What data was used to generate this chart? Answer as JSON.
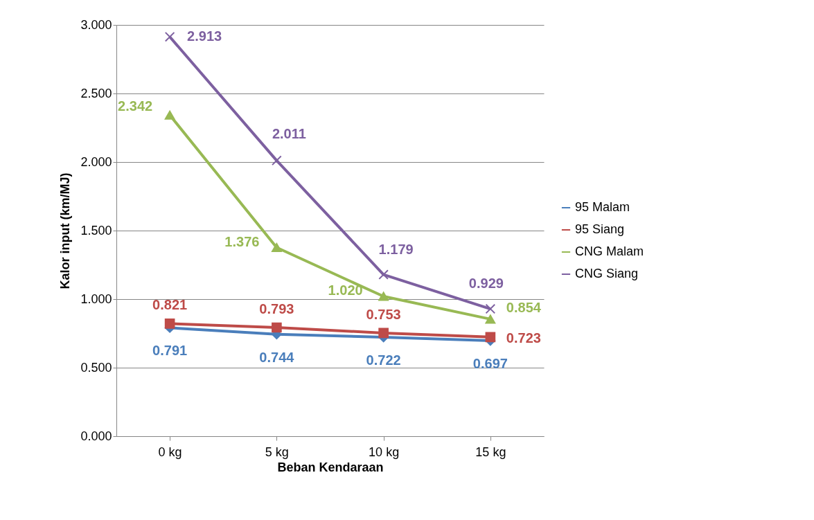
{
  "chart_data": {
    "type": "line",
    "xlabel": "Beban Kendaraan",
    "ylabel": "Kalor input (km/MJ)",
    "categories": [
      "0 kg",
      "5 kg",
      "10 kg",
      "15 kg"
    ],
    "series": [
      {
        "name": "95 Malam",
        "color": "#4a7ebb",
        "marker": "diamond",
        "values": [
          0.791,
          0.744,
          0.722,
          0.697
        ],
        "value_labels": [
          "0.791",
          "0.744",
          "0.722",
          "0.697"
        ]
      },
      {
        "name": "95 Siang",
        "color": "#be4b48",
        "marker": "square",
        "values": [
          0.821,
          0.793,
          0.753,
          0.723
        ],
        "value_labels": [
          "0.821",
          "0.793",
          "0.753",
          "0.723"
        ]
      },
      {
        "name": "CNG Malam",
        "color": "#98b954",
        "marker": "triangle",
        "values": [
          2.342,
          1.376,
          1.02,
          0.854
        ],
        "value_labels": [
          "2.342",
          "1.376",
          "1.020",
          "0.854"
        ]
      },
      {
        "name": "CNG Siang",
        "color": "#7d60a0",
        "marker": "cross",
        "values": [
          2.913,
          2.011,
          1.179,
          0.929
        ],
        "value_labels": [
          "2.913",
          "2.011",
          "1.179",
          "0.929"
        ]
      }
    ],
    "ylim": [
      0,
      3
    ],
    "yticks": [
      {
        "value": 0,
        "label": "0.000"
      },
      {
        "value": 0.5,
        "label": "0.500"
      },
      {
        "value": 1,
        "label": "1.000"
      },
      {
        "value": 1.5,
        "label": "1.500"
      },
      {
        "value": 2,
        "label": "2.000"
      },
      {
        "value": 2.5,
        "label": "2.500"
      },
      {
        "value": 3,
        "label": "3.000"
      }
    ],
    "grid": "y",
    "legend": "right"
  }
}
